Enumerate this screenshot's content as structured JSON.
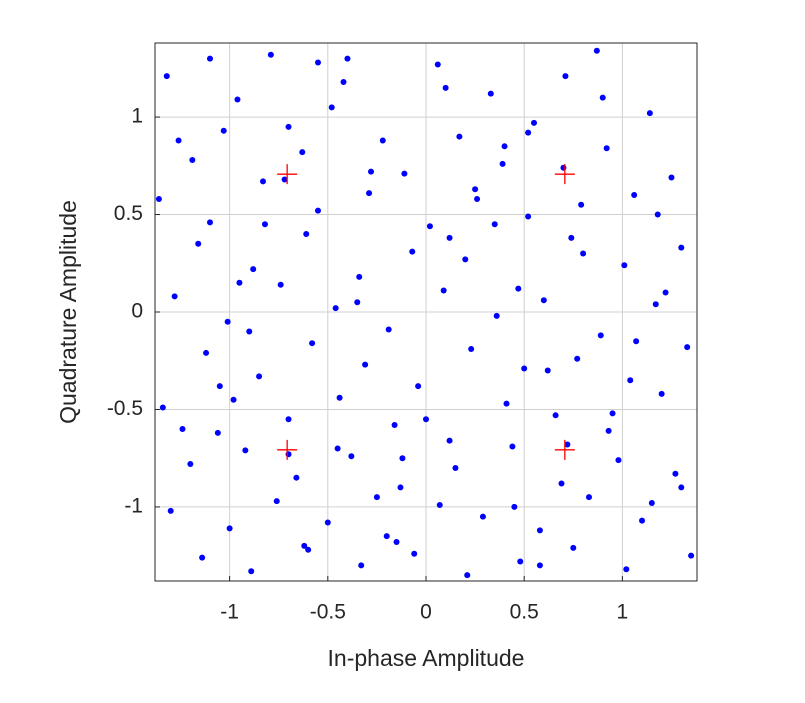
{
  "chart_data": {
    "type": "scatter",
    "x_label": "In-phase Amplitude",
    "y_label": "Quadrature Amplitude",
    "xlim": [
      -1.38,
      1.38
    ],
    "ylim": [
      -1.38,
      1.38
    ],
    "xticks": [
      -1,
      -0.5,
      0,
      0.5,
      1
    ],
    "yticks": [
      -1,
      -0.5,
      0,
      0.5,
      1
    ],
    "grid": true,
    "series": [
      {
        "color": "#0000ff",
        "marker": "dot",
        "x": [
          -1.32,
          -1.03,
          -0.79,
          -0.48,
          -0.22,
          0.06,
          0.33,
          0.55,
          0.87,
          1.14,
          -1.19,
          -0.96,
          -0.63,
          -0.42,
          -0.11,
          0.17,
          0.39,
          0.71,
          0.92,
          1.25,
          -1.36,
          -1.1,
          -0.83,
          -0.55,
          -0.29,
          0.02,
          0.25,
          0.52,
          0.79,
          1.06,
          -1.16,
          -0.88,
          -0.61,
          -0.34,
          -0.07,
          0.2,
          0.47,
          0.74,
          1.01,
          1.3,
          -1.28,
          -1.01,
          -0.74,
          -0.46,
          -0.19,
          0.09,
          0.36,
          0.6,
          0.89,
          1.17,
          -1.12,
          -0.85,
          -0.58,
          -0.31,
          -0.04,
          0.23,
          0.5,
          0.77,
          1.04,
          1.33,
          -1.34,
          -1.06,
          -0.7,
          -0.44,
          -0.16,
          0.12,
          0.41,
          0.66,
          0.93,
          1.2,
          -1.2,
          -0.92,
          -0.66,
          -0.38,
          -0.13,
          0.15,
          0.44,
          0.69,
          0.98,
          1.27,
          -1.3,
          -1.0,
          -0.76,
          -0.5,
          -0.2,
          0.07,
          0.29,
          0.58,
          0.83,
          1.1,
          -1.14,
          -0.89,
          -0.6,
          -0.33,
          -0.06,
          0.21,
          0.48,
          0.75,
          1.02,
          1.35,
          -0.95,
          -0.45,
          0.1,
          0.62,
          1.18,
          -1.24,
          -0.7,
          -0.15,
          0.35,
          0.9,
          -0.28,
          0.45,
          -1.05,
          0.8,
          -0.55,
          1.3,
          0.0,
          -0.82,
          0.58,
          -0.35,
          1.07,
          -1.26,
          0.26,
          -0.62,
          0.95,
          -0.12,
          -0.9,
          0.4,
          1.22,
          -0.4,
          -0.72,
          0.7,
          -0.7,
          0.72,
          -1.1,
          0.12,
          1.15,
          -0.25,
          0.52,
          -0.98
        ],
        "values": [
          1.21,
          0.93,
          1.32,
          1.05,
          0.88,
          1.27,
          1.12,
          0.97,
          1.34,
          1.02,
          0.78,
          1.09,
          0.82,
          1.18,
          0.71,
          0.9,
          0.76,
          1.21,
          0.84,
          0.69,
          0.58,
          0.46,
          0.67,
          0.52,
          0.61,
          0.44,
          0.63,
          0.49,
          0.55,
          0.6,
          0.35,
          0.22,
          0.4,
          0.18,
          0.31,
          0.27,
          0.12,
          0.38,
          0.24,
          0.33,
          0.08,
          -0.05,
          0.14,
          0.02,
          -0.09,
          0.11,
          -0.02,
          0.06,
          -0.12,
          0.04,
          -0.21,
          -0.33,
          -0.16,
          -0.27,
          -0.38,
          -0.19,
          -0.29,
          -0.24,
          -0.35,
          -0.18,
          -0.49,
          -0.62,
          -0.55,
          -0.44,
          -0.58,
          -0.66,
          -0.47,
          -0.53,
          -0.61,
          -0.42,
          -0.78,
          -0.71,
          -0.85,
          -0.74,
          -0.9,
          -0.8,
          -0.69,
          -0.88,
          -0.76,
          -0.83,
          -1.02,
          -1.11,
          -0.97,
          -1.08,
          -1.15,
          -0.99,
          -1.05,
          -1.12,
          -0.95,
          -1.07,
          -1.26,
          -1.33,
          -1.22,
          -1.3,
          -1.24,
          -1.35,
          -1.28,
          -1.21,
          -1.32,
          -1.25,
          0.15,
          -0.7,
          1.15,
          -0.3,
          0.5,
          -0.6,
          0.95,
          -1.18,
          0.45,
          1.1,
          0.72,
          -1.0,
          -0.38,
          0.3,
          1.28,
          -0.9,
          -0.55,
          0.45,
          -1.3,
          0.05,
          -0.15,
          0.88,
          0.58,
          -1.2,
          -0.52,
          -0.75,
          -0.1,
          0.85,
          0.1,
          1.3,
          0.68,
          0.74,
          -0.73,
          -0.68,
          1.3,
          0.38,
          -0.98,
          -0.95,
          0.92,
          -0.45
        ]
      },
      {
        "color": "#ff0000",
        "marker": "plus",
        "x": [
          -0.707,
          0.707,
          -0.707,
          0.707
        ],
        "values": [
          0.707,
          0.707,
          -0.707,
          -0.707
        ]
      }
    ]
  }
}
